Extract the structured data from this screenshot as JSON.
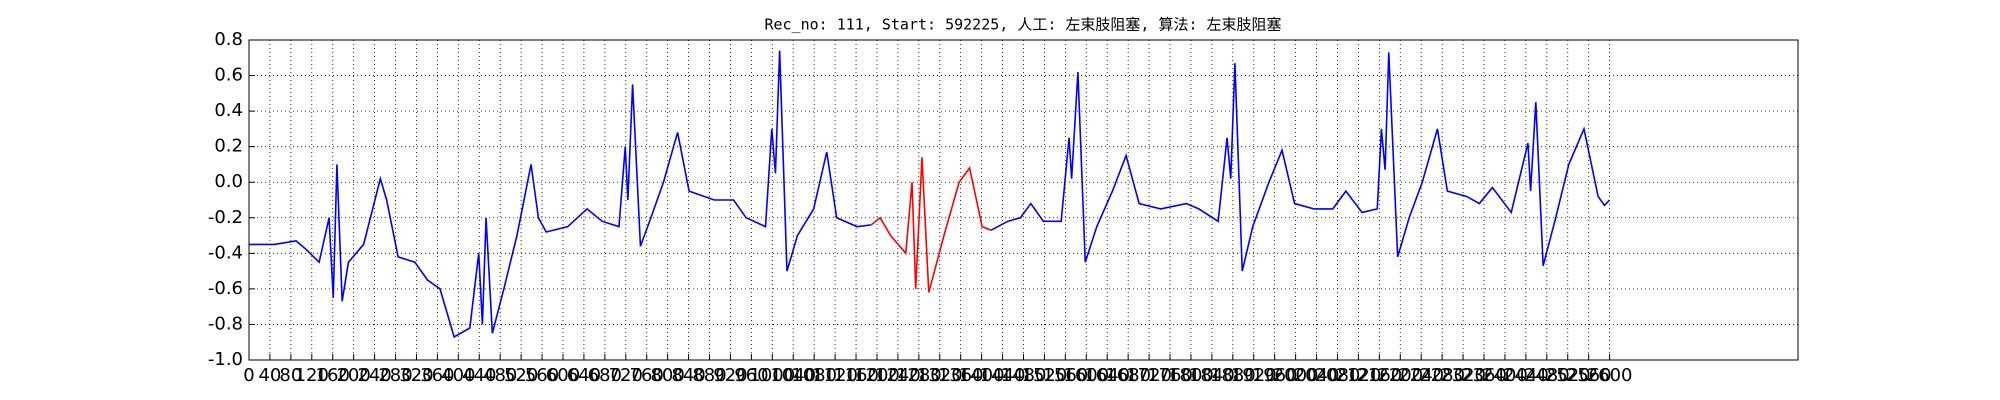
{
  "chart_data": {
    "type": "line",
    "title": "Rec_no: 111, Start: 592225, 人工: 左束肢阻塞, 算法: 左束肢阻塞",
    "x": [
      0,
      49,
      90,
      110,
      134,
      153,
      161,
      168,
      178,
      190,
      219,
      251,
      263,
      285,
      317,
      341,
      365,
      392,
      422,
      439,
      446,
      453,
      465,
      487,
      512,
      539,
      553,
      568,
      609,
      646,
      675,
      707,
      719,
      724,
      733,
      748,
      768,
      792,
      819,
      841,
      889,
      926,
      950,
      987,
      999,
      1006,
      1014,
      1028,
      1048,
      1079,
      1104,
      1123,
      1162,
      1189,
      1206,
      1226,
      1255,
      1267,
      1274,
      1286,
      1299,
      1328,
      1357,
      1377,
      1401,
      1418,
      1450,
      1474,
      1494,
      1518,
      1552,
      1567,
      1572,
      1584,
      1598,
      1620,
      1650,
      1676,
      1701,
      1742,
      1791,
      1815,
      1852,
      1869,
      1876,
      1884,
      1898,
      1918,
      1949,
      1974,
      1998,
      2035,
      2071,
      2096,
      2127,
      2156,
      2164,
      2171,
      2178,
      2195,
      2217,
      2242,
      2271,
      2290,
      2327,
      2351,
      2376,
      2412,
      2444,
      2449,
      2459,
      2473,
      2497,
      2522,
      2551,
      2578,
      2590,
      2600
    ],
    "series": [
      {
        "color": "#0000ff",
        "values": [
          -0.35,
          -0.35,
          -0.33,
          -0.38,
          -0.45,
          -0.2,
          -0.65,
          0.1,
          -0.67,
          -0.45,
          -0.35,
          0.02,
          -0.1,
          -0.42,
          -0.45,
          -0.55,
          -0.6,
          -0.87,
          -0.82,
          -0.4,
          -0.8,
          -0.2,
          -0.85,
          -0.6,
          -0.3,
          0.1,
          -0.2,
          -0.28,
          -0.25,
          -0.15,
          -0.22,
          -0.25,
          0.2,
          -0.1,
          0.55,
          -0.36,
          -0.2,
          0.0,
          0.28,
          -0.05,
          -0.1,
          -0.1,
          -0.2,
          -0.25,
          0.3,
          0.05,
          0.74,
          -0.5,
          -0.3,
          -0.15,
          0.17,
          -0.2,
          -0.25,
          -0.24,
          null,
          null,
          null,
          null,
          null,
          null,
          null,
          null,
          null,
          null,
          null,
          -0.27,
          -0.22,
          -0.2,
          -0.12,
          -0.22,
          -0.22,
          0.25,
          0.02,
          0.62,
          -0.45,
          -0.25,
          -0.05,
          0.15,
          -0.12,
          -0.15,
          -0.12,
          -0.15,
          -0.22,
          0.25,
          0.02,
          0.67,
          -0.5,
          -0.25,
          0.0,
          0.18,
          -0.12,
          -0.15,
          -0.15,
          -0.05,
          -0.17,
          -0.15,
          0.3,
          0.07,
          0.73,
          -0.42,
          -0.2,
          0.0,
          0.3,
          -0.05,
          -0.08,
          -0.12,
          -0.03,
          -0.17,
          0.22,
          -0.05,
          0.45,
          -0.47,
          -0.2,
          0.1,
          0.3,
          -0.08,
          -0.13,
          -0.1
        ]
      },
      {
        "color": "#ff0000",
        "values": [
          null,
          null,
          null,
          null,
          null,
          null,
          null,
          null,
          null,
          null,
          null,
          null,
          null,
          null,
          null,
          null,
          null,
          null,
          null,
          null,
          null,
          null,
          null,
          null,
          null,
          null,
          null,
          null,
          null,
          null,
          null,
          null,
          null,
          null,
          null,
          null,
          null,
          null,
          null,
          null,
          null,
          null,
          null,
          null,
          null,
          null,
          null,
          null,
          null,
          null,
          null,
          null,
          null,
          -0.24,
          -0.2,
          -0.3,
          -0.4,
          0.0,
          -0.6,
          0.14,
          -0.62,
          -0.3,
          0.0,
          0.08,
          -0.25,
          -0.27,
          null,
          null,
          null,
          null,
          null,
          null,
          null,
          null,
          null,
          null,
          null,
          null,
          null,
          null,
          null,
          null,
          null,
          null,
          null,
          null,
          null,
          null,
          null,
          null,
          null,
          null,
          null,
          null,
          null,
          null,
          null,
          null,
          null,
          null,
          null,
          null,
          null,
          null,
          null,
          null,
          null,
          null,
          null,
          null,
          null,
          null,
          null,
          null,
          null,
          null,
          null,
          null
        ]
      }
    ],
    "xlim": [
      0,
      2960
    ],
    "xticks": [
      0,
      40,
      80,
      120,
      160,
      200,
      240,
      280,
      320,
      360,
      400,
      440,
      480,
      520,
      560,
      600,
      640,
      680,
      720,
      760,
      800,
      840,
      880,
      920,
      960,
      1000,
      1040,
      1080,
      1120,
      1160,
      1200,
      1240,
      1280,
      1320,
      1360,
      1400,
      1440,
      1480,
      1520,
      1560,
      1600,
      1640,
      1680,
      1720,
      1760,
      1800,
      1840,
      1880,
      1920,
      1960,
      2000,
      2040,
      2080,
      2120,
      2160,
      2200,
      2240,
      2280,
      2320,
      2360,
      2400,
      2440,
      2480,
      2520,
      2560,
      2600
    ],
    "ylim": [
      -1,
      0.8
    ],
    "yticks": [
      0.8,
      0.6,
      0.4,
      0.2,
      {
        "value": 0,
        "label": "0.0"
      },
      -0.2,
      -0.4,
      -0.6,
      -0.8,
      {
        "value": -1,
        "label": "-1.0"
      }
    ],
    "grid": true
  }
}
